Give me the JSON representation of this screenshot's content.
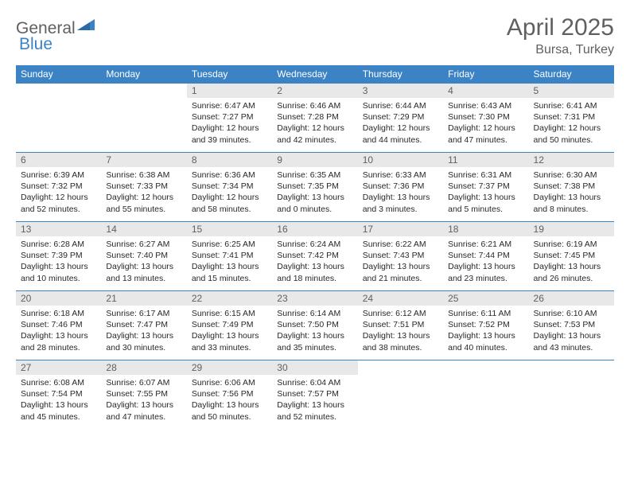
{
  "logo": {
    "text1": "General",
    "text2": "Blue"
  },
  "title": "April 2025",
  "location": "Bursa, Turkey",
  "colors": {
    "header_bg": "#3c83c5",
    "header_text": "#ffffff",
    "daynum_bg": "#e8e8e8",
    "text_gray": "#606060",
    "body_text": "#282828",
    "border": "#3c83c5",
    "page_bg": "#ffffff"
  },
  "day_headers": [
    "Sunday",
    "Monday",
    "Tuesday",
    "Wednesday",
    "Thursday",
    "Friday",
    "Saturday"
  ],
  "weeks": [
    [
      null,
      null,
      {
        "n": "1",
        "sr": "Sunrise: 6:47 AM",
        "ss": "Sunset: 7:27 PM",
        "d1": "Daylight: 12 hours",
        "d2": "and 39 minutes."
      },
      {
        "n": "2",
        "sr": "Sunrise: 6:46 AM",
        "ss": "Sunset: 7:28 PM",
        "d1": "Daylight: 12 hours",
        "d2": "and 42 minutes."
      },
      {
        "n": "3",
        "sr": "Sunrise: 6:44 AM",
        "ss": "Sunset: 7:29 PM",
        "d1": "Daylight: 12 hours",
        "d2": "and 44 minutes."
      },
      {
        "n": "4",
        "sr": "Sunrise: 6:43 AM",
        "ss": "Sunset: 7:30 PM",
        "d1": "Daylight: 12 hours",
        "d2": "and 47 minutes."
      },
      {
        "n": "5",
        "sr": "Sunrise: 6:41 AM",
        "ss": "Sunset: 7:31 PM",
        "d1": "Daylight: 12 hours",
        "d2": "and 50 minutes."
      }
    ],
    [
      {
        "n": "6",
        "sr": "Sunrise: 6:39 AM",
        "ss": "Sunset: 7:32 PM",
        "d1": "Daylight: 12 hours",
        "d2": "and 52 minutes."
      },
      {
        "n": "7",
        "sr": "Sunrise: 6:38 AM",
        "ss": "Sunset: 7:33 PM",
        "d1": "Daylight: 12 hours",
        "d2": "and 55 minutes."
      },
      {
        "n": "8",
        "sr": "Sunrise: 6:36 AM",
        "ss": "Sunset: 7:34 PM",
        "d1": "Daylight: 12 hours",
        "d2": "and 58 minutes."
      },
      {
        "n": "9",
        "sr": "Sunrise: 6:35 AM",
        "ss": "Sunset: 7:35 PM",
        "d1": "Daylight: 13 hours",
        "d2": "and 0 minutes."
      },
      {
        "n": "10",
        "sr": "Sunrise: 6:33 AM",
        "ss": "Sunset: 7:36 PM",
        "d1": "Daylight: 13 hours",
        "d2": "and 3 minutes."
      },
      {
        "n": "11",
        "sr": "Sunrise: 6:31 AM",
        "ss": "Sunset: 7:37 PM",
        "d1": "Daylight: 13 hours",
        "d2": "and 5 minutes."
      },
      {
        "n": "12",
        "sr": "Sunrise: 6:30 AM",
        "ss": "Sunset: 7:38 PM",
        "d1": "Daylight: 13 hours",
        "d2": "and 8 minutes."
      }
    ],
    [
      {
        "n": "13",
        "sr": "Sunrise: 6:28 AM",
        "ss": "Sunset: 7:39 PM",
        "d1": "Daylight: 13 hours",
        "d2": "and 10 minutes."
      },
      {
        "n": "14",
        "sr": "Sunrise: 6:27 AM",
        "ss": "Sunset: 7:40 PM",
        "d1": "Daylight: 13 hours",
        "d2": "and 13 minutes."
      },
      {
        "n": "15",
        "sr": "Sunrise: 6:25 AM",
        "ss": "Sunset: 7:41 PM",
        "d1": "Daylight: 13 hours",
        "d2": "and 15 minutes."
      },
      {
        "n": "16",
        "sr": "Sunrise: 6:24 AM",
        "ss": "Sunset: 7:42 PM",
        "d1": "Daylight: 13 hours",
        "d2": "and 18 minutes."
      },
      {
        "n": "17",
        "sr": "Sunrise: 6:22 AM",
        "ss": "Sunset: 7:43 PM",
        "d1": "Daylight: 13 hours",
        "d2": "and 21 minutes."
      },
      {
        "n": "18",
        "sr": "Sunrise: 6:21 AM",
        "ss": "Sunset: 7:44 PM",
        "d1": "Daylight: 13 hours",
        "d2": "and 23 minutes."
      },
      {
        "n": "19",
        "sr": "Sunrise: 6:19 AM",
        "ss": "Sunset: 7:45 PM",
        "d1": "Daylight: 13 hours",
        "d2": "and 26 minutes."
      }
    ],
    [
      {
        "n": "20",
        "sr": "Sunrise: 6:18 AM",
        "ss": "Sunset: 7:46 PM",
        "d1": "Daylight: 13 hours",
        "d2": "and 28 minutes."
      },
      {
        "n": "21",
        "sr": "Sunrise: 6:17 AM",
        "ss": "Sunset: 7:47 PM",
        "d1": "Daylight: 13 hours",
        "d2": "and 30 minutes."
      },
      {
        "n": "22",
        "sr": "Sunrise: 6:15 AM",
        "ss": "Sunset: 7:49 PM",
        "d1": "Daylight: 13 hours",
        "d2": "and 33 minutes."
      },
      {
        "n": "23",
        "sr": "Sunrise: 6:14 AM",
        "ss": "Sunset: 7:50 PM",
        "d1": "Daylight: 13 hours",
        "d2": "and 35 minutes."
      },
      {
        "n": "24",
        "sr": "Sunrise: 6:12 AM",
        "ss": "Sunset: 7:51 PM",
        "d1": "Daylight: 13 hours",
        "d2": "and 38 minutes."
      },
      {
        "n": "25",
        "sr": "Sunrise: 6:11 AM",
        "ss": "Sunset: 7:52 PM",
        "d1": "Daylight: 13 hours",
        "d2": "and 40 minutes."
      },
      {
        "n": "26",
        "sr": "Sunrise: 6:10 AM",
        "ss": "Sunset: 7:53 PM",
        "d1": "Daylight: 13 hours",
        "d2": "and 43 minutes."
      }
    ],
    [
      {
        "n": "27",
        "sr": "Sunrise: 6:08 AM",
        "ss": "Sunset: 7:54 PM",
        "d1": "Daylight: 13 hours",
        "d2": "and 45 minutes."
      },
      {
        "n": "28",
        "sr": "Sunrise: 6:07 AM",
        "ss": "Sunset: 7:55 PM",
        "d1": "Daylight: 13 hours",
        "d2": "and 47 minutes."
      },
      {
        "n": "29",
        "sr": "Sunrise: 6:06 AM",
        "ss": "Sunset: 7:56 PM",
        "d1": "Daylight: 13 hours",
        "d2": "and 50 minutes."
      },
      {
        "n": "30",
        "sr": "Sunrise: 6:04 AM",
        "ss": "Sunset: 7:57 PM",
        "d1": "Daylight: 13 hours",
        "d2": "and 52 minutes."
      },
      null,
      null,
      null
    ]
  ]
}
